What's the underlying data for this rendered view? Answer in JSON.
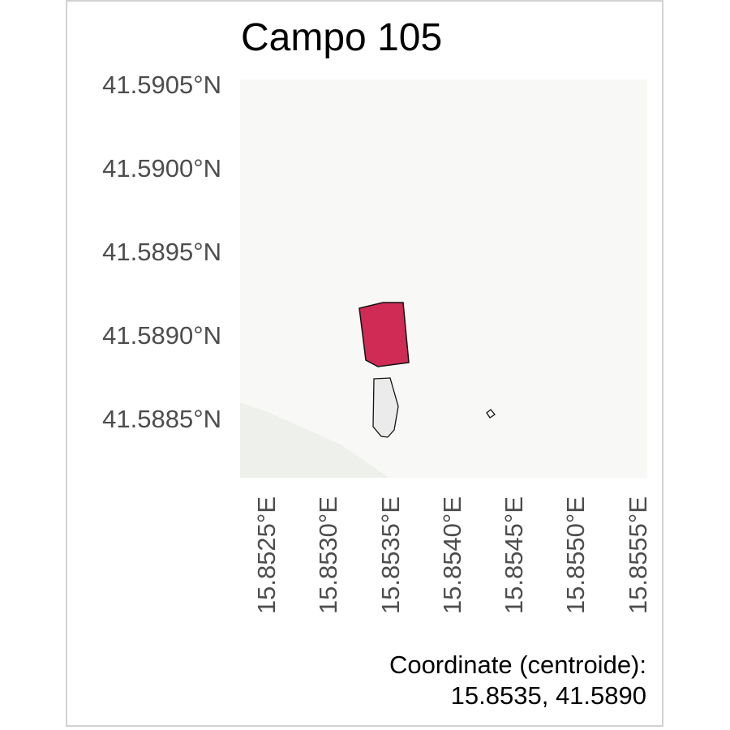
{
  "map": {
    "title": "Campo 105",
    "y_ticks": [
      "41.5905°N",
      "41.5900°N",
      "41.5895°N",
      "41.5890°N",
      "41.5885°N"
    ],
    "x_ticks": [
      "15.8525°E",
      "15.8530°E",
      "15.8535°E",
      "15.8540°E",
      "15.8545°E",
      "15.8550°E",
      "15.8555°E"
    ],
    "caption_line1": "Coordinate (centroide):",
    "caption_line2": "15.8535, 41.5890",
    "colors": {
      "background": "#f8f9f7",
      "lower_left_area": "#eef0ec",
      "highlighted_field": "#cf2b55",
      "neighbor_field": "#ebebeb",
      "outline": "#111111",
      "frame": "#d2d2d2"
    },
    "features": [
      {
        "name": "highlighted-field",
        "role": "selected field"
      },
      {
        "name": "neighbor-field",
        "role": "adjacent field"
      },
      {
        "name": "small-parcel",
        "role": "small parcel"
      }
    ]
  }
}
